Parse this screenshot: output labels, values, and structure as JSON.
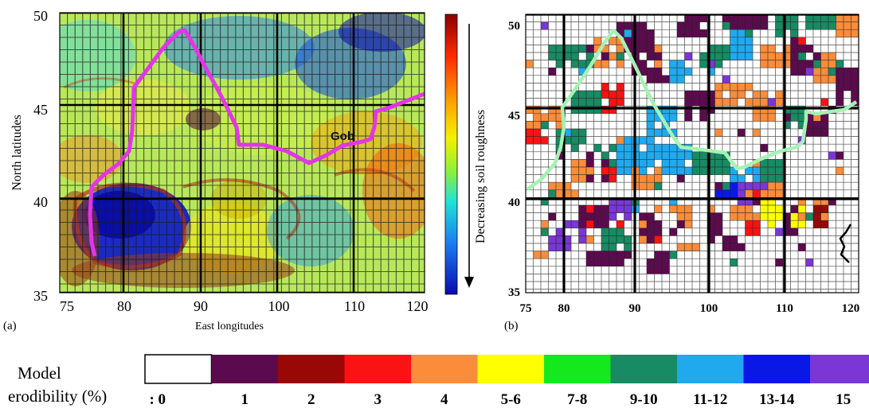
{
  "panel_a": {
    "label": "(a)",
    "y_axis_title": "North latitudes",
    "x_axis_title": "East longitudes",
    "x_ticks": [
      "75",
      "80",
      "90",
      "100",
      "110",
      "120"
    ],
    "y_ticks": [
      "50",
      "45",
      "40",
      "35"
    ],
    "region_label": "Gob",
    "colorbar_label": "Decreasing soil roughness",
    "colorbar_colors": [
      "#8b0000",
      "#ff2a00",
      "#ff9a00",
      "#f6f000",
      "#8ef03a",
      "#1fe2d8",
      "#1a7cf2",
      "#0a0ab0"
    ]
  },
  "panel_b": {
    "label": "(b)",
    "x_ticks": [
      "75",
      "80",
      "90",
      "100",
      "110",
      "120"
    ],
    "y_ticks": [
      "50",
      "45",
      "40",
      "35"
    ]
  },
  "legend": {
    "title_line1": "Model",
    "title_line2": "erodibility (%)",
    "items": [
      {
        "label": ": 0",
        "color": "#ffffff"
      },
      {
        "label": "1",
        "color": "#5c0a4e"
      },
      {
        "label": "2",
        "color": "#9a0707"
      },
      {
        "label": "3",
        "color": "#fb1212"
      },
      {
        "label": "4",
        "color": "#fb8c3a"
      },
      {
        "label": "5-6",
        "color": "#ffff00"
      },
      {
        "label": "7-8",
        "color": "#16e81e"
      },
      {
        "label": "9-10",
        "color": "#188a64"
      },
      {
        "label": "11-12",
        "color": "#21a9ee"
      },
      {
        "label": "13-14",
        "color": "#0a18e6"
      },
      {
        "label": "15",
        "color": "#7a37d6"
      }
    ]
  },
  "colors": {
    "boundary_a": "#e434e8",
    "boundary_b": "#a5f2b4",
    "grid_bold": "#000000"
  }
}
